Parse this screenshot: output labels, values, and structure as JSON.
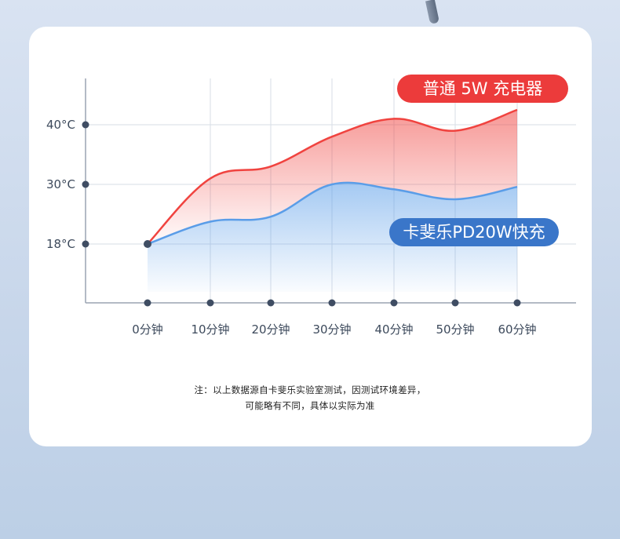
{
  "chart_data": {
    "type": "line",
    "title": "",
    "xlabel": "",
    "ylabel": "",
    "categories": [
      "0分钟",
      "10分钟",
      "20分钟",
      "30分钟",
      "40分钟",
      "50分钟",
      "60分钟"
    ],
    "y_ticks": [
      18,
      30,
      40
    ],
    "y_tick_labels": [
      "18°C",
      "30°C",
      "40°C"
    ],
    "ylim": [
      8,
      46
    ],
    "grid": true,
    "series": [
      {
        "name": "普通 5W 充电器",
        "color": "#f0433f",
        "values": [
          18,
          31,
          33,
          38,
          41,
          39,
          42.5
        ]
      },
      {
        "name": "卡斐乐PD20W快充",
        "color": "#5a9de8",
        "values": [
          18,
          22.5,
          23.5,
          30,
          29,
          27,
          29.5
        ]
      }
    ]
  },
  "colors": {
    "red_series": "#f0433f",
    "blue_series": "#5a9de8",
    "red_badge": "#ec3b3b",
    "blue_badge": "#3a76c9",
    "axis": "#9aa4b2",
    "grid": "#d7dde6",
    "dot": "#3f4d63"
  },
  "note": {
    "line1": "注：以上数据源自卡斐乐实验室测试，因测试环境差异，",
    "line2": "可能略有不同，具体以实际为准"
  }
}
